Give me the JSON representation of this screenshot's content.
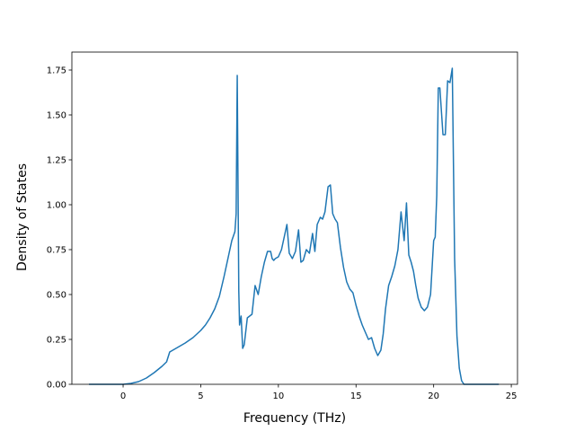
{
  "chart_data": {
    "type": "line",
    "title": "",
    "xlabel": "Frequency (THz)",
    "ylabel": "Density of States",
    "xlim": [
      -3.3,
      25.4
    ],
    "ylim": [
      0.0,
      1.85
    ],
    "xticks": [
      0,
      5,
      10,
      15,
      20,
      25
    ],
    "xtick_labels": [
      "0",
      "5",
      "10",
      "15",
      "20",
      "25"
    ],
    "yticks": [
      0.0,
      0.25,
      0.5,
      0.75,
      1.0,
      1.25,
      1.5,
      1.75
    ],
    "ytick_labels": [
      "0.00",
      "0.25",
      "0.50",
      "0.75",
      "1.00",
      "1.25",
      "1.50",
      "1.75"
    ],
    "grid": false,
    "legend": "none",
    "series": [
      {
        "color": "#1f77b4",
        "x": [
          -2.2,
          -1.0,
          0.0,
          0.5,
          1.0,
          1.5,
          2.0,
          2.5,
          2.8,
          3.0,
          3.5,
          4.0,
          4.5,
          5.0,
          5.3,
          5.6,
          5.9,
          6.2,
          6.5,
          6.8,
          7.0,
          7.2,
          7.28,
          7.35,
          7.45,
          7.5,
          7.6,
          7.7,
          7.8,
          8.0,
          8.3,
          8.5,
          8.7,
          8.9,
          9.1,
          9.3,
          9.5,
          9.6,
          9.7,
          9.8,
          10.0,
          10.2,
          10.4,
          10.55,
          10.7,
          10.9,
          11.1,
          11.3,
          11.45,
          11.6,
          11.8,
          12.0,
          12.2,
          12.35,
          12.5,
          12.7,
          12.85,
          13.0,
          13.2,
          13.35,
          13.5,
          13.65,
          13.8,
          14.0,
          14.2,
          14.4,
          14.6,
          14.8,
          15.0,
          15.2,
          15.4,
          15.6,
          15.8,
          16.0,
          16.2,
          16.4,
          16.6,
          16.75,
          16.9,
          17.1,
          17.3,
          17.5,
          17.7,
          17.9,
          18.1,
          18.25,
          18.4,
          18.55,
          18.7,
          18.85,
          19.0,
          19.2,
          19.4,
          19.6,
          19.8,
          20.0,
          20.1,
          20.2,
          20.3,
          20.4,
          20.6,
          20.75,
          20.9,
          21.05,
          21.2,
          21.35,
          21.5,
          21.65,
          21.8,
          21.95,
          22.1,
          22.5,
          23.5,
          24.2
        ],
        "y": [
          0.0,
          0.0,
          0.0,
          0.005,
          0.015,
          0.035,
          0.065,
          0.1,
          0.125,
          0.18,
          0.205,
          0.23,
          0.26,
          0.3,
          0.33,
          0.37,
          0.42,
          0.49,
          0.6,
          0.72,
          0.8,
          0.85,
          0.95,
          1.72,
          0.52,
          0.33,
          0.38,
          0.2,
          0.22,
          0.37,
          0.39,
          0.55,
          0.5,
          0.6,
          0.68,
          0.74,
          0.74,
          0.7,
          0.69,
          0.7,
          0.71,
          0.75,
          0.83,
          0.89,
          0.73,
          0.7,
          0.74,
          0.86,
          0.68,
          0.69,
          0.75,
          0.73,
          0.84,
          0.74,
          0.89,
          0.93,
          0.92,
          0.96,
          1.1,
          1.11,
          0.95,
          0.92,
          0.9,
          0.76,
          0.65,
          0.57,
          0.53,
          0.51,
          0.44,
          0.38,
          0.33,
          0.29,
          0.25,
          0.26,
          0.2,
          0.16,
          0.19,
          0.28,
          0.42,
          0.55,
          0.6,
          0.66,
          0.75,
          0.96,
          0.8,
          1.01,
          0.72,
          0.68,
          0.63,
          0.55,
          0.48,
          0.43,
          0.41,
          0.43,
          0.5,
          0.8,
          0.82,
          1.05,
          1.65,
          1.65,
          1.39,
          1.39,
          1.69,
          1.68,
          1.76,
          0.7,
          0.27,
          0.09,
          0.02,
          0.0,
          0.0,
          0.0,
          0.0,
          0.0
        ]
      }
    ]
  }
}
